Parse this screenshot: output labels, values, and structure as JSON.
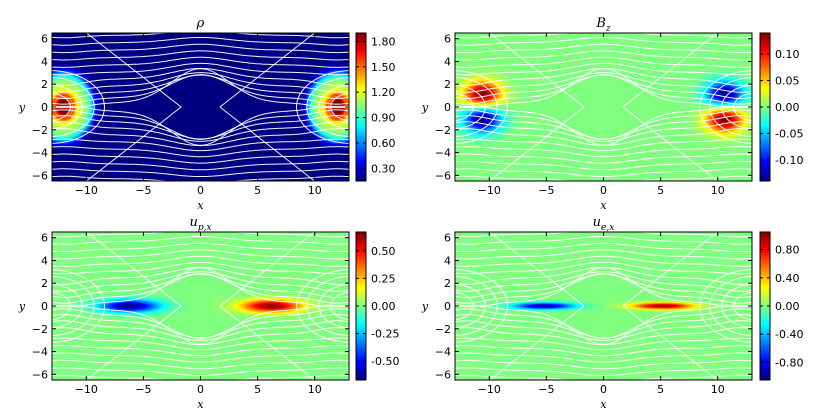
{
  "chart_data": [
    {
      "type": "heatmap",
      "title": "ρ",
      "xlabel": "x",
      "ylabel": "y",
      "xlim": [
        -13,
        13
      ],
      "ylim": [
        -6.5,
        6.5
      ],
      "xticks": [
        -10,
        -5,
        0,
        5,
        10
      ],
      "yticks": [
        -6,
        -4,
        -2,
        0,
        2,
        4,
        6
      ],
      "colorbar": {
        "min": 0.15,
        "max": 1.9,
        "ticks": [
          "0.30",
          "0.60",
          "0.90",
          "1.20",
          "1.50",
          "1.80"
        ],
        "tick_values": [
          0.3,
          0.6,
          0.9,
          1.2,
          1.5,
          1.8
        ]
      },
      "colormap": "jet",
      "field": "rho",
      "field_lines": "white"
    },
    {
      "type": "heatmap",
      "title": "B_z",
      "xlabel": "x",
      "ylabel": "y",
      "xlim": [
        -13,
        13
      ],
      "ylim": [
        -6.5,
        6.5
      ],
      "xticks": [
        -10,
        -5,
        0,
        5,
        10
      ],
      "yticks": [
        -6,
        -4,
        -2,
        0,
        2,
        4,
        6
      ],
      "colorbar": {
        "min": -0.14,
        "max": 0.14,
        "ticks": [
          "-0.10",
          "-0.05",
          "0.00",
          "0.05",
          "0.10"
        ],
        "tick_values": [
          -0.1,
          -0.05,
          0,
          0.05,
          0.1
        ]
      },
      "colormap": "jet",
      "field": "bz",
      "field_lines": "white"
    },
    {
      "type": "heatmap",
      "title": "u_{p,x}",
      "xlabel": "x",
      "ylabel": "y",
      "xlim": [
        -13,
        13
      ],
      "ylim": [
        -6.5,
        6.5
      ],
      "xticks": [
        -10,
        -5,
        0,
        5,
        10
      ],
      "yticks": [
        -6,
        -4,
        -2,
        0,
        2,
        4,
        6
      ],
      "colorbar": {
        "min": -0.67,
        "max": 0.67,
        "ticks": [
          "-0.50",
          "-0.25",
          "0.00",
          "0.25",
          "0.50"
        ],
        "tick_values": [
          -0.5,
          -0.25,
          0,
          0.25,
          0.5
        ]
      },
      "colormap": "jet",
      "field": "upx",
      "field_lines": "white"
    },
    {
      "type": "heatmap",
      "title": "u_{e,x}",
      "xlabel": "x",
      "ylabel": "y",
      "xlim": [
        -13,
        13
      ],
      "ylim": [
        -6.5,
        6.5
      ],
      "xticks": [
        -10,
        -5,
        0,
        5,
        10
      ],
      "yticks": [
        -6,
        -4,
        -2,
        0,
        2,
        4,
        6
      ],
      "colorbar": {
        "min": -1.05,
        "max": 1.05,
        "ticks": [
          "-0.80",
          "-0.40",
          "0.00",
          "0.40",
          "0.80"
        ],
        "tick_values": [
          -0.8,
          -0.4,
          0,
          0.4,
          0.8
        ]
      },
      "colormap": "jet",
      "field": "uex",
      "field_lines": "white"
    }
  ]
}
